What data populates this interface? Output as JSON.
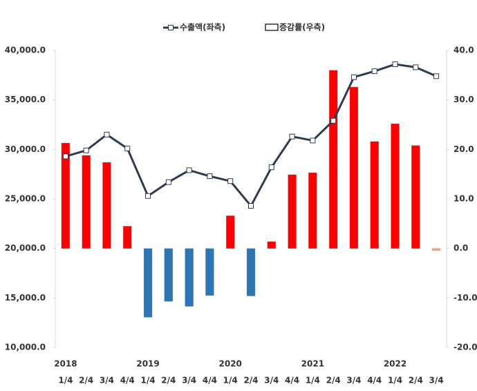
{
  "chart_data": {
    "type": "bar_line",
    "categories": [
      "1/4",
      "2/4",
      "3/4",
      "4/4",
      "1/4",
      "2/4",
      "3/4",
      "4/4",
      "1/4",
      "2/4",
      "3/4",
      "4/4",
      "1/4",
      "2/4",
      "3/4",
      "4/4",
      "1/4",
      "2/4",
      "3/4"
    ],
    "years": [
      "2018",
      null,
      null,
      null,
      "2019",
      null,
      null,
      null,
      "2020",
      null,
      null,
      null,
      "2021",
      null,
      null,
      null,
      "2022",
      null,
      null
    ],
    "series": [
      {
        "name": "수출액(좌측)",
        "kind": "line",
        "axis": "y",
        "color": "#2e3a4f",
        "values": [
          29300,
          29900,
          31500,
          30100,
          25300,
          26700,
          27900,
          27300,
          26800,
          24300,
          28200,
          31300,
          30900,
          32900,
          37300,
          37900,
          38600,
          38300,
          37400
        ]
      },
      {
        "name": "증감률(우측)",
        "kind": "bar",
        "axis": "y2",
        "colors": [
          "#ff0000",
          "#ff0000",
          "#ff0000",
          "#ff0000",
          "#2e75b6",
          "#2e75b6",
          "#2e75b6",
          "#2e75b6",
          "#ff0000",
          "#2e75b6",
          "#ff0000",
          "#ff0000",
          "#ff0000",
          "#ff0000",
          "#ff0000",
          "#ff0000",
          "#ff0000",
          "#ff0000",
          "#f4a460"
        ],
        "values": [
          21.3,
          18.8,
          17.4,
          4.5,
          -13.9,
          -10.7,
          -11.7,
          -9.5,
          6.6,
          -9.6,
          1.4,
          14.9,
          15.3,
          36.0,
          32.6,
          21.6,
          25.2,
          20.8,
          -0.4
        ]
      }
    ],
    "ylim": [
      10000,
      40000
    ],
    "yticks": [
      {
        "value": 10000,
        "label": "10,000.0"
      },
      {
        "value": 15000,
        "label": "15,000.0"
      },
      {
        "value": 20000,
        "label": "20,000.0"
      },
      {
        "value": 25000,
        "label": "25,000.0"
      },
      {
        "value": 30000,
        "label": "30,000.0"
      },
      {
        "value": 35000,
        "label": "35,000.0"
      },
      {
        "value": 40000,
        "label": "40,000.0"
      }
    ],
    "y2lim": [
      -20,
      40
    ],
    "y2ticks": [
      {
        "value": -20,
        "label": "-20.0"
      },
      {
        "value": -10,
        "label": "-10.0"
      },
      {
        "value": 0,
        "label": "0.0"
      },
      {
        "value": 10,
        "label": "10.0"
      },
      {
        "value": 20,
        "label": "20.0"
      },
      {
        "value": 30,
        "label": "30.0"
      },
      {
        "value": 40,
        "label": "40.0"
      }
    ],
    "grid": false,
    "legend": "top"
  }
}
